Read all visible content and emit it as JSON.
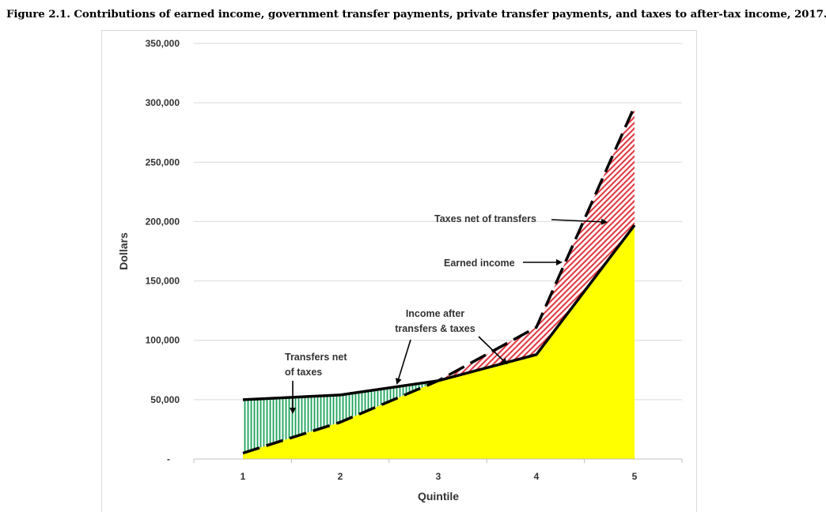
{
  "figure_title": "Figure 2.1. Contributions of earned income, government transfer payments, private transfer payments, and taxes to after-tax income, 2017.",
  "chart_data": {
    "type": "area",
    "title": "",
    "xlabel": "Quintile",
    "ylabel": "Dollars",
    "categories": [
      "1",
      "2",
      "3",
      "4",
      "5"
    ],
    "ylim": [
      0,
      350000
    ],
    "y_ticks": [
      {
        "value": 50000,
        "label": "50,000"
      },
      {
        "value": 100000,
        "label": "100,000"
      },
      {
        "value": 150000,
        "label": "150,000"
      },
      {
        "value": 200000,
        "label": "200,000"
      },
      {
        "value": 250000,
        "label": "250,000"
      },
      {
        "value": 300000,
        "label": "300,000"
      },
      {
        "value": 350000,
        "label": "350,000"
      }
    ],
    "y_zero_label": "-",
    "grid": true,
    "series": [
      {
        "name": "Earned income",
        "values": [
          5000,
          31000,
          66000,
          111000,
          297000
        ],
        "style": "dashed"
      },
      {
        "name": "Income after transfers & taxes",
        "values": [
          50000,
          54000,
          66000,
          88000,
          197000
        ],
        "style": "solid"
      }
    ],
    "annotations": [
      {
        "id": "transfers",
        "lines": [
          "Transfers net",
          "of taxes"
        ]
      },
      {
        "id": "after",
        "lines": [
          "Income after",
          "transfers & taxes"
        ]
      },
      {
        "id": "earned",
        "lines": [
          "Earned income"
        ]
      },
      {
        "id": "taxes",
        "lines": [
          "Taxes net of transfers"
        ]
      }
    ],
    "colors": {
      "after_tax_fill": "#ffff00",
      "transfers_hatch": "#1aa35a",
      "taxes_hatch": "#e0303a",
      "line": "#000000",
      "grid": "#d9d9d9"
    }
  }
}
